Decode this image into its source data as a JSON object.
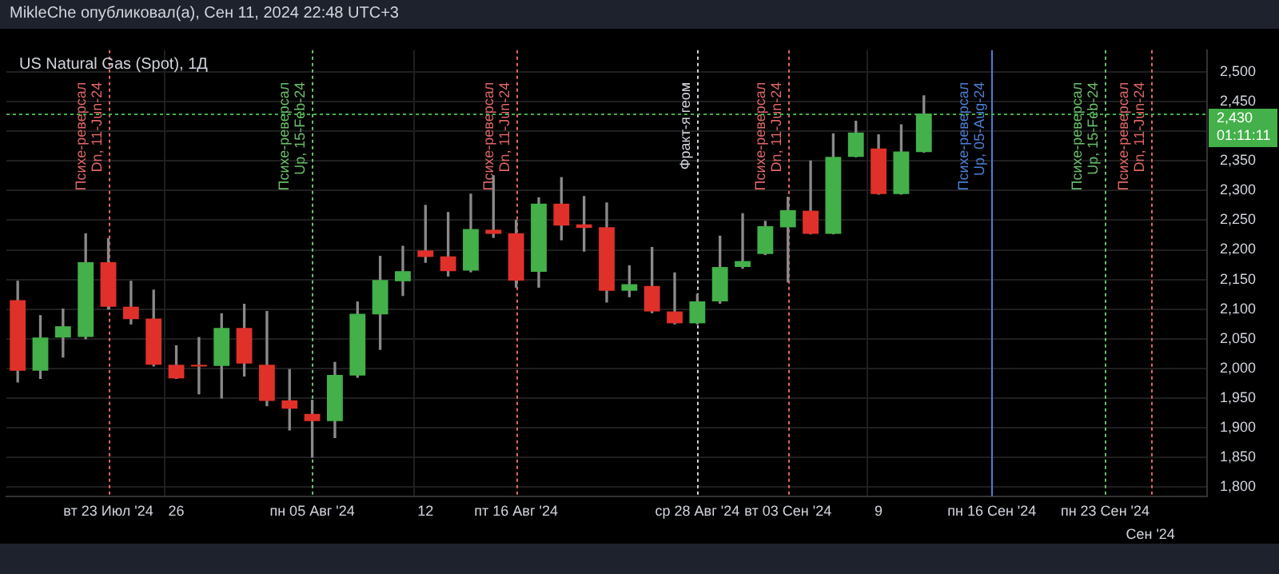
{
  "chart_data": {
    "type": "candlestick",
    "title": "US Natural Gas (Spot), 1Д",
    "subtitle": "MikleChe опубликовал(а), Сен 11, 2024 22:48 UTC+3",
    "categories": [
      null,
      null,
      null,
      null,
      "вт 23 Июл '24",
      null,
      null,
      "26",
      null,
      null,
      null,
      null,
      null,
      "пн 05 Авг '24",
      null,
      null,
      null,
      null,
      "12",
      null,
      null,
      null,
      "пт 16 Авг '24",
      null,
      null,
      null,
      null,
      null,
      null,
      null,
      "ср 28 Авг '24",
      null,
      null,
      null,
      "вт 03 Сен '24",
      null,
      null,
      null,
      "9",
      null,
      null,
      null,
      null,
      "пн 16 Сен '24",
      null,
      null,
      null,
      null,
      "пн 23 Сен '24",
      null,
      "Сен '24",
      null,
      null
    ],
    "ohlc": [
      [
        2115,
        2147,
        1977,
        1996
      ],
      [
        1996,
        2089,
        1983,
        2052
      ],
      [
        2052,
        2100,
        2019,
        2071
      ],
      [
        2053,
        2227,
        2050,
        2179
      ],
      [
        2179,
        2219,
        2100,
        2104
      ],
      [
        2104,
        2147,
        2075,
        2083
      ],
      [
        2084,
        2132,
        2004,
        2006
      ],
      [
        2006,
        2038,
        1983,
        1983
      ],
      [
        2006,
        2052,
        1957,
        2003
      ],
      [
        2004,
        2092,
        1950,
        2068
      ],
      [
        2068,
        2108,
        1987,
        2008
      ],
      [
        2006,
        2096,
        1937,
        1945
      ],
      [
        1946,
        1998,
        1896,
        1932
      ],
      [
        1923,
        1946,
        1850,
        1911
      ],
      [
        1911,
        2010,
        1883,
        1989
      ],
      [
        1988,
        2112,
        1985,
        2092
      ],
      [
        2091,
        2189,
        2032,
        2149
      ],
      [
        2147,
        2206,
        2123,
        2164
      ],
      [
        2199,
        2275,
        2179,
        2188
      ],
      [
        2189,
        2263,
        2156,
        2164
      ],
      [
        2165,
        2294,
        2163,
        2235
      ],
      [
        2234,
        2325,
        2221,
        2227
      ],
      [
        2228,
        2250,
        2137,
        2148
      ],
      [
        2163,
        2288,
        2137,
        2278
      ],
      [
        2278,
        2322,
        2217,
        2241
      ],
      [
        2243,
        2290,
        2198,
        2237
      ],
      [
        2238,
        2279,
        2112,
        2131
      ],
      [
        2131,
        2173,
        2121,
        2142
      ],
      [
        2139,
        2204,
        2094,
        2096
      ],
      [
        2096,
        2161,
        2075,
        2076
      ],
      [
        2076,
        2125,
        2075,
        2113
      ],
      [
        2113,
        2223,
        2110,
        2171
      ],
      [
        2171,
        2261,
        2169,
        2181
      ],
      [
        2193,
        2248,
        2192,
        2240
      ],
      [
        2238,
        2289,
        2146,
        2267
      ],
      [
        2266,
        2350,
        2227,
        2227
      ],
      [
        2227,
        2396,
        2227,
        2357
      ],
      [
        2357,
        2417,
        2357,
        2398
      ],
      [
        2371,
        2394,
        2294,
        2294
      ],
      [
        2294,
        2411,
        2294,
        2366
      ],
      [
        2365,
        2460,
        2365,
        2430
      ],
      null,
      null,
      null,
      null,
      null,
      null,
      null,
      null,
      null,
      null,
      null,
      null
    ],
    "colors": [
      "#e0302a",
      "#43b049",
      "#43b049",
      "#43b049",
      "#e0302a",
      "#e0302a",
      "#e0302a",
      "#e0302a",
      "#e0302a",
      "#43b049",
      "#e0302a",
      "#e0302a",
      "#e0302a",
      "#e0302a",
      "#43b049",
      "#43b049",
      "#43b049",
      "#43b049",
      "#e0302a",
      "#e0302a",
      "#43b049",
      "#e0302a",
      "#e0302a",
      "#43b049",
      "#e0302a",
      "#e0302a",
      "#e0302a",
      "#43b049",
      "#e0302a",
      "#e0302a",
      "#43b049",
      "#43b049",
      "#43b049",
      "#43b049",
      "#43b049",
      "#e0302a",
      "#43b049",
      "#43b049",
      "#e0302a",
      "#43b049",
      "#43b049",
      null,
      null,
      null,
      null,
      null,
      null,
      null,
      null,
      null,
      null,
      null,
      null
    ],
    "ylim": [
      1784,
      2537
    ],
    "yticks": [
      {
        "value": 1800,
        "label": "1,800"
      },
      {
        "value": 1850,
        "label": "1,850"
      },
      {
        "value": 1900,
        "label": "1,900"
      },
      {
        "value": 1950,
        "label": "1,950"
      },
      {
        "value": 2000,
        "label": "2,000"
      },
      {
        "value": 2050,
        "label": "2,050"
      },
      {
        "value": 2100,
        "label": "2,100"
      },
      {
        "value": 2150,
        "label": "2,150"
      },
      {
        "value": 2200,
        "label": "2,200"
      },
      {
        "value": 2250,
        "label": "2,250"
      },
      {
        "value": 2300,
        "label": "2,300"
      },
      {
        "value": 2350,
        "label": "2,350"
      },
      {
        "value": 2400,
        "label": null
      },
      {
        "value": 2450,
        "label": "2,450"
      },
      {
        "value": 2500,
        "label": "2,500"
      }
    ],
    "grid": true,
    "legend": false,
    "ref_lines": [
      {
        "axis": "x",
        "value": "вт 23 Июл '24",
        "label": "Психе-реверсал\nDn, 11-Jun-24",
        "color": "#e06666",
        "line_style": "dotted"
      },
      {
        "axis": "x",
        "value": "пн 05 Авг '24",
        "label": "Психе-реверсал\nUp, 15-Feb-24",
        "color": "#6abf69",
        "line_style": "dotted"
      },
      {
        "axis": "x",
        "value": "пт 16 Авг '24",
        "label": "Психе-реверсал\nDn, 11-Jun-24",
        "color": "#e06666",
        "line_style": "dotted"
      },
      {
        "axis": "x",
        "value": "ср 28 Авг '24",
        "label": "Фракт-я геом",
        "color": "#d1d4dc",
        "line_style": "dotted"
      },
      {
        "axis": "x",
        "value": "вт 03 Сен '24",
        "label": "Психе-реверсал\nDn, 11-Jun-24",
        "color": "#e06666",
        "line_style": "dotted"
      },
      {
        "axis": "x",
        "value": "пн 16 Сен '24",
        "label": "Психе-реверсал\nUp, 05-Aug-24",
        "color": "#4a7fd4",
        "line_style": "solid"
      },
      {
        "axis": "x",
        "value": "пн 23 Сен '24",
        "label": "Психе-реверсал\nUp, 15-Feb-24",
        "color": "#6abf69",
        "line_style": "dotted"
      },
      {
        "axis": "x",
        "value": "Сен '24",
        "label": "Психе-реверсал\nDn, 11-Jun-24",
        "color": "#e06666",
        "line_style": "dotted"
      },
      {
        "axis": "y",
        "value": 2430,
        "label": "2,430\n01:11:11",
        "color": "#43b049",
        "line_style": "dotted"
      }
    ]
  }
}
